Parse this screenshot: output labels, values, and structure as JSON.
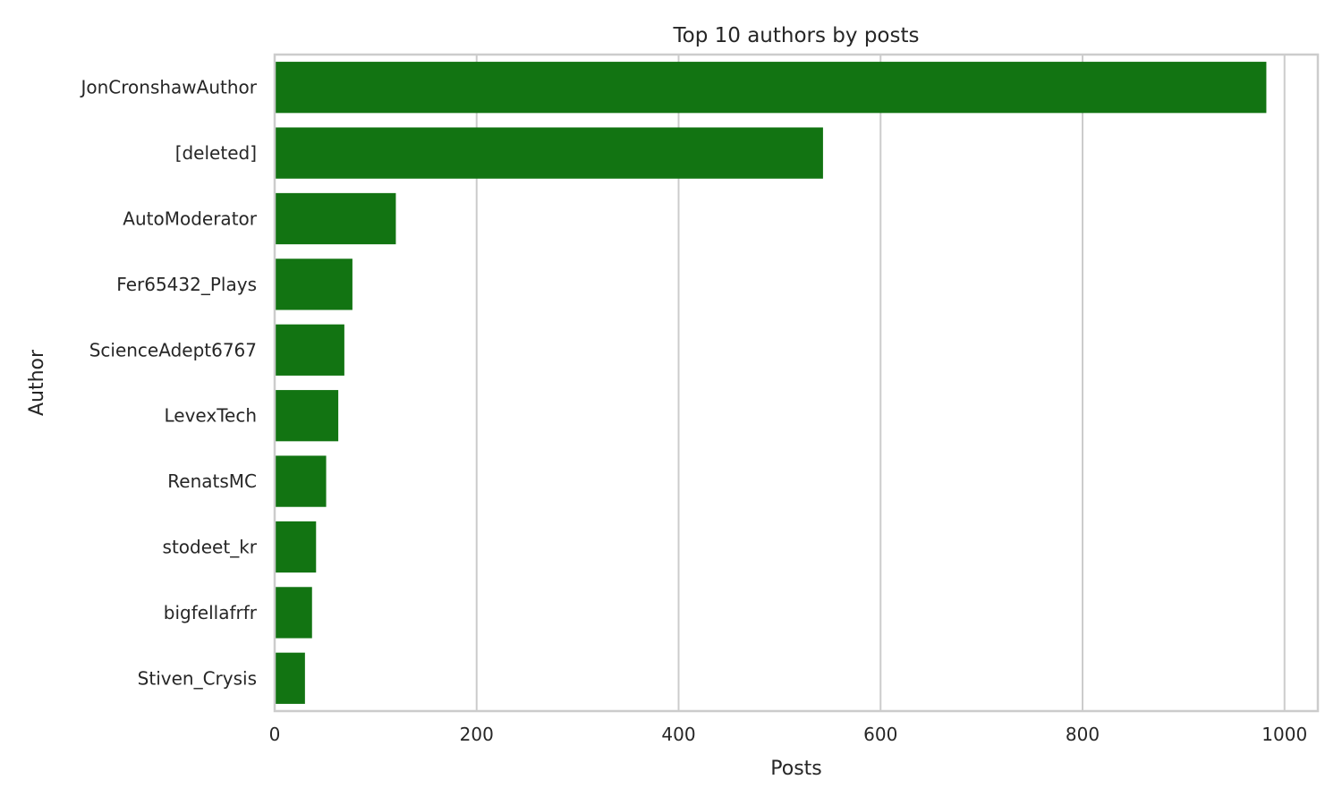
{
  "chart_data": {
    "type": "bar",
    "orientation": "horizontal",
    "title": "Top 10 authors by posts",
    "xlabel": "Posts",
    "ylabel": "Author",
    "categories": [
      "JonCronshawAuthor",
      "[deleted]",
      "AutoModerator",
      "Fer65432_Plays",
      "ScienceAdept6767",
      "LevexTech",
      "RenatsMC",
      "stodeet_kr",
      "bigfellafrfr",
      "Stiven_Crysis"
    ],
    "values": [
      982,
      543,
      120,
      77,
      69,
      63,
      51,
      41,
      37,
      30
    ],
    "xlim": [
      0,
      1033
    ],
    "xticks": [
      0,
      200,
      400,
      600,
      800,
      1000
    ],
    "xtick_labels": [
      "0",
      "200",
      "400",
      "600",
      "800",
      "1000"
    ],
    "grid": "vertical",
    "bar_color": "#127412"
  }
}
